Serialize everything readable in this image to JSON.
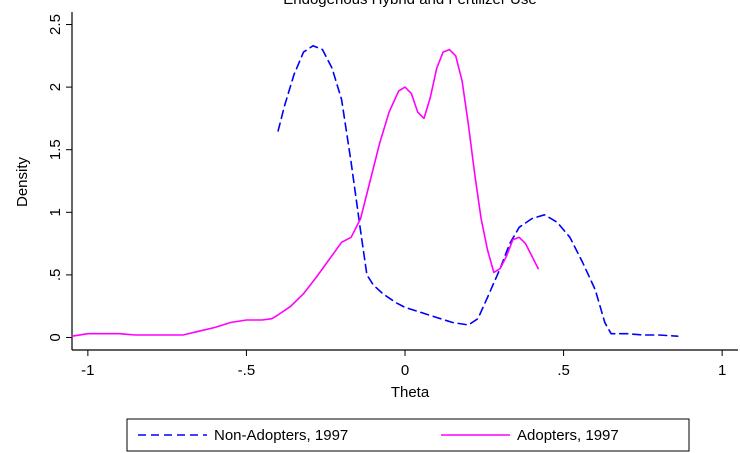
{
  "chart_data": {
    "type": "line",
    "title": "Endogenous Hybrid and Fertilizer Use",
    "xlabel": "Theta",
    "ylabel": "Density",
    "xlim": [
      -1.05,
      1.05
    ],
    "ylim": [
      -0.1,
      2.6
    ],
    "xticks": [
      -1,
      -0.5,
      0,
      0.5,
      1
    ],
    "xtick_labels": [
      "-1",
      "-.5",
      "0",
      ".5",
      "1"
    ],
    "yticks": [
      0,
      0.5,
      1,
      1.5,
      2,
      2.5
    ],
    "ytick_labels": [
      "0",
      ".5",
      "1",
      "1.5",
      "2",
      "2.5"
    ],
    "grid": false,
    "legend_position": "bottom",
    "series": [
      {
        "name": "Non-Adopters, 1997",
        "color": "#0000ff",
        "style": "dashed",
        "x": [
          -0.4,
          -0.38,
          -0.35,
          -0.32,
          -0.29,
          -0.26,
          -0.23,
          -0.2,
          -0.17,
          -0.14,
          -0.12,
          -0.1,
          -0.07,
          -0.03,
          0.0,
          0.05,
          0.1,
          0.15,
          0.2,
          0.23,
          0.26,
          0.3,
          0.33,
          0.36,
          0.4,
          0.44,
          0.48,
          0.52,
          0.56,
          0.6,
          0.63,
          0.65,
          0.7,
          0.75,
          0.8,
          0.86
        ],
        "y": [
          1.65,
          1.85,
          2.1,
          2.28,
          2.33,
          2.3,
          2.15,
          1.9,
          1.4,
          0.85,
          0.5,
          0.42,
          0.35,
          0.28,
          0.24,
          0.2,
          0.16,
          0.12,
          0.1,
          0.15,
          0.32,
          0.55,
          0.75,
          0.88,
          0.95,
          0.98,
          0.92,
          0.8,
          0.6,
          0.38,
          0.12,
          0.03,
          0.03,
          0.02,
          0.02,
          0.01
        ]
      },
      {
        "name": "Adopters, 1997",
        "color": "#ff00ff",
        "style": "solid",
        "x": [
          -1.05,
          -1.0,
          -0.95,
          -0.9,
          -0.85,
          -0.8,
          -0.75,
          -0.7,
          -0.65,
          -0.6,
          -0.55,
          -0.5,
          -0.45,
          -0.42,
          -0.4,
          -0.36,
          -0.32,
          -0.28,
          -0.24,
          -0.2,
          -0.17,
          -0.14,
          -0.11,
          -0.08,
          -0.05,
          -0.02,
          0.0,
          0.02,
          0.04,
          0.06,
          0.08,
          0.1,
          0.12,
          0.14,
          0.16,
          0.18,
          0.2,
          0.22,
          0.24,
          0.26,
          0.28,
          0.3,
          0.32,
          0.34,
          0.36,
          0.38,
          0.4,
          0.42
        ],
        "y": [
          0.01,
          0.03,
          0.03,
          0.03,
          0.02,
          0.02,
          0.02,
          0.02,
          0.05,
          0.08,
          0.12,
          0.14,
          0.14,
          0.15,
          0.18,
          0.25,
          0.35,
          0.48,
          0.62,
          0.76,
          0.8,
          0.95,
          1.25,
          1.55,
          1.8,
          1.97,
          2.0,
          1.95,
          1.8,
          1.75,
          1.92,
          2.15,
          2.28,
          2.3,
          2.25,
          2.05,
          1.7,
          1.3,
          0.95,
          0.7,
          0.52,
          0.55,
          0.65,
          0.78,
          0.8,
          0.75,
          0.65,
          0.55
        ]
      }
    ]
  }
}
